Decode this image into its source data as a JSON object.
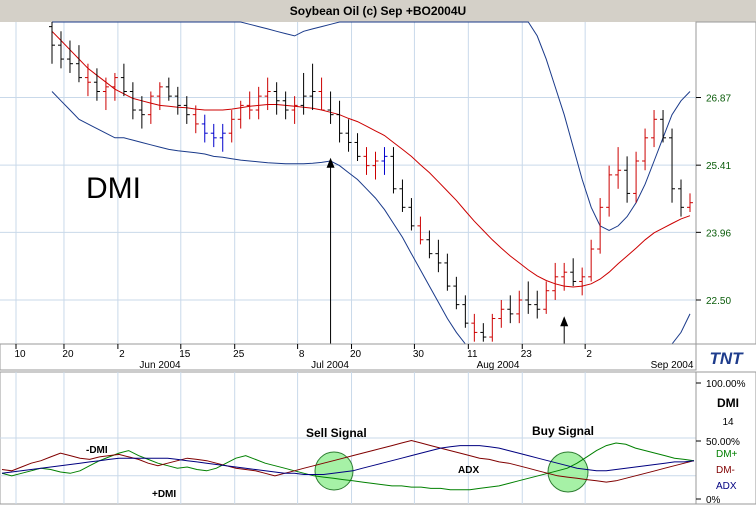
{
  "window": {
    "title": "Soybean Oil (c) Sep +BO2004U"
  },
  "overlay_label": "DMI",
  "logo_text": "TNT",
  "colors": {
    "bars_up": "#cc0000",
    "bars_down": "#000000",
    "bars_blue": "#0000cc",
    "midband": "#cc0000",
    "bands": "#1a3a8a",
    "plus_di": "#008000",
    "minus_di": "#800000",
    "adx": "#000080",
    "circle": "#90ee90",
    "axis_label": "#0a5c0a"
  },
  "chart_data": [
    {
      "type": "candlestick",
      "title": "Soybean Oil (c) Sep +BO2004U",
      "y_ticks": [
        "26.87",
        "25.41",
        "23.96",
        "22.50"
      ],
      "y_tick_values": [
        26.87,
        25.41,
        23.96,
        22.5
      ],
      "ylim": [
        21.55,
        28.5
      ],
      "x_day_ticks": [
        "10",
        "20",
        "2",
        "15",
        "25",
        "8",
        "20",
        "30",
        "11",
        "23",
        "2"
      ],
      "x_month_labels": [
        "Jun 2004",
        "Jul 2004",
        "Aug 2004",
        "Sep 2004"
      ],
      "n_bars": 72,
      "ohlc": [
        [
          28.4,
          28.5,
          27.6,
          28.0,
          "k"
        ],
        [
          28.0,
          28.3,
          27.5,
          27.7,
          "k"
        ],
        [
          27.7,
          28.1,
          27.4,
          27.6,
          "k"
        ],
        [
          27.6,
          28.0,
          27.2,
          27.3,
          "k"
        ],
        [
          27.3,
          27.6,
          26.9,
          27.2,
          "r"
        ],
        [
          27.2,
          27.5,
          26.8,
          27.0,
          "k"
        ],
        [
          27.0,
          27.3,
          26.6,
          27.1,
          "r"
        ],
        [
          27.1,
          27.4,
          26.8,
          27.3,
          "r"
        ],
        [
          27.3,
          27.6,
          26.9,
          27.0,
          "k"
        ],
        [
          27.0,
          27.2,
          26.4,
          26.6,
          "k"
        ],
        [
          26.6,
          26.9,
          26.2,
          26.5,
          "k"
        ],
        [
          26.5,
          27.0,
          26.3,
          26.9,
          "r"
        ],
        [
          26.9,
          27.2,
          26.6,
          27.1,
          "r"
        ],
        [
          27.1,
          27.3,
          26.8,
          26.9,
          "k"
        ],
        [
          26.9,
          27.1,
          26.5,
          26.7,
          "k"
        ],
        [
          26.7,
          26.9,
          26.3,
          26.5,
          "k"
        ],
        [
          26.5,
          26.7,
          26.1,
          26.3,
          "r"
        ],
        [
          26.3,
          26.5,
          25.9,
          26.1,
          "b"
        ],
        [
          26.1,
          26.3,
          25.8,
          26.0,
          "b"
        ],
        [
          26.0,
          26.3,
          25.7,
          26.1,
          "b"
        ],
        [
          26.1,
          26.6,
          25.9,
          26.4,
          "r"
        ],
        [
          26.4,
          26.8,
          26.2,
          26.7,
          "r"
        ],
        [
          26.7,
          27.0,
          26.4,
          26.6,
          "r"
        ],
        [
          26.6,
          27.1,
          26.4,
          26.9,
          "r"
        ],
        [
          26.9,
          27.3,
          26.6,
          27.0,
          "r"
        ],
        [
          27.0,
          27.2,
          26.5,
          26.8,
          "k"
        ],
        [
          26.8,
          27.0,
          26.4,
          26.6,
          "k"
        ],
        [
          26.6,
          26.9,
          26.3,
          26.7,
          "r"
        ],
        [
          26.7,
          27.4,
          26.5,
          26.9,
          "k"
        ],
        [
          26.9,
          27.6,
          26.6,
          27.0,
          "k"
        ],
        [
          27.0,
          27.3,
          26.6,
          26.6,
          "r"
        ],
        [
          26.6,
          27.0,
          26.3,
          26.5,
          "k"
        ],
        [
          26.5,
          26.8,
          25.9,
          26.1,
          "k"
        ],
        [
          26.1,
          26.4,
          25.7,
          25.9,
          "k"
        ],
        [
          25.9,
          26.1,
          25.5,
          25.6,
          "k"
        ],
        [
          25.6,
          25.8,
          25.2,
          25.4,
          "r"
        ],
        [
          25.4,
          25.7,
          25.1,
          25.5,
          "r"
        ],
        [
          25.5,
          25.8,
          25.2,
          25.6,
          "b"
        ],
        [
          25.6,
          25.8,
          24.8,
          24.9,
          "k"
        ],
        [
          24.9,
          25.1,
          24.4,
          24.5,
          "k"
        ],
        [
          24.5,
          24.7,
          24.0,
          24.1,
          "k"
        ],
        [
          24.1,
          24.3,
          23.7,
          23.8,
          "r"
        ],
        [
          23.8,
          24.0,
          23.4,
          23.5,
          "k"
        ],
        [
          23.5,
          23.8,
          23.1,
          23.3,
          "k"
        ],
        [
          23.3,
          23.5,
          22.7,
          22.8,
          "k"
        ],
        [
          22.8,
          23.0,
          22.3,
          22.4,
          "k"
        ],
        [
          22.4,
          22.6,
          21.9,
          22.0,
          "k"
        ],
        [
          22.0,
          22.2,
          21.6,
          21.8,
          "r"
        ],
        [
          21.8,
          22.0,
          21.6,
          21.7,
          "k"
        ],
        [
          21.7,
          22.2,
          21.6,
          22.1,
          "r"
        ],
        [
          22.1,
          22.5,
          21.9,
          22.3,
          "r"
        ],
        [
          22.3,
          22.6,
          22.0,
          22.2,
          "k"
        ],
        [
          22.2,
          22.7,
          22.0,
          22.5,
          "r"
        ],
        [
          22.5,
          22.9,
          22.2,
          22.4,
          "k"
        ],
        [
          22.4,
          22.7,
          22.1,
          22.3,
          "k"
        ],
        [
          22.3,
          22.9,
          22.2,
          22.7,
          "r"
        ],
        [
          22.7,
          23.3,
          22.5,
          23.0,
          "r"
        ],
        [
          23.0,
          23.3,
          22.7,
          23.1,
          "r"
        ],
        [
          23.1,
          23.4,
          22.8,
          22.9,
          "k"
        ],
        [
          22.9,
          23.2,
          22.6,
          23.0,
          "r"
        ],
        [
          23.0,
          23.8,
          22.9,
          23.6,
          "r"
        ],
        [
          23.6,
          24.7,
          23.5,
          24.5,
          "r"
        ],
        [
          24.5,
          25.4,
          24.3,
          25.2,
          "r"
        ],
        [
          25.2,
          25.8,
          24.9,
          25.3,
          "r"
        ],
        [
          25.3,
          25.6,
          24.6,
          24.8,
          "k"
        ],
        [
          24.8,
          25.7,
          24.6,
          25.5,
          "r"
        ],
        [
          25.5,
          26.2,
          25.3,
          26.0,
          "r"
        ],
        [
          26.0,
          26.6,
          25.8,
          26.4,
          "r"
        ],
        [
          26.4,
          26.6,
          25.9,
          26.0,
          "k"
        ],
        [
          26.0,
          26.2,
          24.6,
          24.9,
          "k"
        ],
        [
          24.9,
          25.1,
          24.3,
          24.5,
          "k"
        ],
        [
          24.5,
          24.8,
          24.4,
          24.6,
          "r"
        ]
      ],
      "middle_band": [
        28.3,
        28.1,
        27.9,
        27.7,
        27.5,
        27.35,
        27.2,
        27.05,
        26.95,
        26.85,
        26.8,
        26.75,
        26.7,
        26.68,
        26.66,
        26.65,
        26.62,
        26.6,
        26.6,
        26.6,
        26.62,
        26.65,
        26.68,
        26.7,
        26.72,
        26.72,
        26.7,
        26.68,
        26.66,
        26.64,
        26.6,
        26.55,
        26.5,
        26.42,
        26.35,
        26.25,
        26.15,
        26.05,
        25.9,
        25.75,
        25.6,
        25.42,
        25.25,
        25.05,
        24.85,
        24.65,
        24.42,
        24.2,
        24.0,
        23.8,
        23.62,
        23.45,
        23.3,
        23.15,
        23.02,
        22.92,
        22.85,
        22.8,
        22.78,
        22.8,
        22.85,
        22.95,
        23.1,
        23.28,
        23.45,
        23.62,
        23.8,
        23.95,
        24.05,
        24.15,
        24.25,
        24.32
      ],
      "upper_band": [
        29.0,
        29.0,
        29.0,
        29.0,
        29.0,
        29.0,
        29.0,
        29.0,
        29.0,
        29.0,
        29.0,
        29.0,
        29.0,
        29.0,
        29.0,
        29.0,
        29.0,
        29.0,
        29.0,
        28.7,
        28.6,
        28.5,
        28.45,
        28.4,
        28.35,
        28.3,
        28.25,
        28.2,
        28.3,
        28.35,
        28.4,
        28.45,
        28.5,
        28.6,
        28.7,
        28.8,
        28.9,
        29.0,
        29.0,
        29.0,
        29.0,
        29.0,
        29.0,
        29.0,
        29.0,
        29.0,
        29.0,
        29.0,
        29.0,
        29.0,
        29.0,
        29.0,
        28.9,
        28.6,
        28.2,
        27.7,
        27.1,
        26.5,
        25.8,
        25.1,
        24.5,
        24.1,
        24.0,
        24.1,
        24.3,
        24.6,
        25.0,
        25.5,
        26.0,
        26.5,
        26.8,
        27.0
      ],
      "lower_band": [
        27.0,
        26.8,
        26.6,
        26.4,
        26.3,
        26.2,
        26.1,
        26.0,
        26.0,
        25.95,
        25.9,
        25.85,
        25.8,
        25.75,
        25.72,
        25.7,
        25.68,
        25.65,
        25.6,
        25.58,
        25.55,
        25.52,
        25.5,
        25.48,
        25.46,
        25.45,
        25.44,
        25.44,
        25.44,
        25.45,
        25.47,
        25.5,
        25.4,
        25.25,
        25.1,
        24.9,
        24.7,
        24.45,
        24.15,
        23.85,
        23.5,
        23.15,
        22.8,
        22.45,
        22.1,
        21.8,
        21.5,
        21.3,
        21.2,
        21.1,
        21.05,
        21.0,
        21.0,
        21.0,
        21.0,
        21.0,
        21.0,
        21.0,
        21.0,
        21.0,
        21.0,
        21.0,
        21.0,
        21.0,
        21.0,
        21.0,
        21.0,
        21.05,
        21.2,
        21.45,
        21.8,
        22.2
      ],
      "annotations": [
        "DMI"
      ]
    },
    {
      "type": "line",
      "title": "DMI",
      "param": "14",
      "y_ticks": [
        "100.00%",
        "50.00%",
        "0%"
      ],
      "ylim": [
        0,
        100
      ],
      "series": [
        {
          "name": "DM+",
          "color": "#008000",
          "values": [
            22,
            20,
            22,
            24,
            26,
            25,
            23,
            22,
            24,
            28,
            32,
            35,
            38,
            40,
            36,
            33,
            30,
            28,
            26,
            27,
            25,
            24,
            26,
            30,
            34,
            36,
            33,
            30,
            28,
            26,
            24,
            22,
            20,
            19,
            18,
            17,
            16,
            15,
            14,
            13,
            12,
            12,
            11,
            11,
            10,
            10,
            9,
            9,
            9,
            10,
            11,
            12,
            14,
            16,
            18,
            20,
            22,
            24,
            26,
            30,
            35,
            40,
            44,
            46,
            45,
            42,
            40,
            38,
            36,
            34,
            33,
            32
          ]
        },
        {
          "name": "DM-",
          "color": "#800000",
          "values": [
            25,
            24,
            27,
            30,
            32,
            35,
            38,
            36,
            34,
            33,
            35,
            36,
            37,
            35,
            33,
            30,
            28,
            30,
            32,
            34,
            33,
            32,
            30,
            28,
            26,
            25,
            24,
            22,
            20,
            22,
            24,
            26,
            28,
            30,
            32,
            34,
            36,
            38,
            40,
            42,
            44,
            46,
            48,
            46,
            44,
            42,
            40,
            38,
            36,
            34,
            33,
            31,
            30,
            28,
            26,
            24,
            22,
            20,
            19,
            18,
            17,
            16,
            15,
            16,
            18,
            20,
            22,
            24,
            26,
            28,
            30,
            32
          ]
        },
        {
          "name": "ADX",
          "color": "#000080",
          "values": [
            22,
            23,
            24,
            25,
            26,
            27,
            28,
            29,
            30,
            31,
            32,
            33,
            34,
            34,
            34,
            34,
            34,
            34,
            33,
            32,
            31,
            30,
            29,
            28,
            27,
            26,
            25,
            24,
            23,
            22,
            22,
            21,
            21,
            21,
            22,
            23,
            24,
            26,
            28,
            30,
            32,
            34,
            36,
            38,
            40,
            42,
            43,
            44,
            44,
            44,
            43,
            42,
            40,
            38,
            36,
            34,
            32,
            30,
            28,
            26,
            25,
            24,
            24,
            25,
            26,
            27,
            28,
            29,
            30,
            31,
            31,
            32
          ]
        }
      ],
      "annotations": [
        "-DMI",
        "+DMI",
        "ADX",
        "Sell Signal",
        "Buy Signal"
      ]
    }
  ]
}
